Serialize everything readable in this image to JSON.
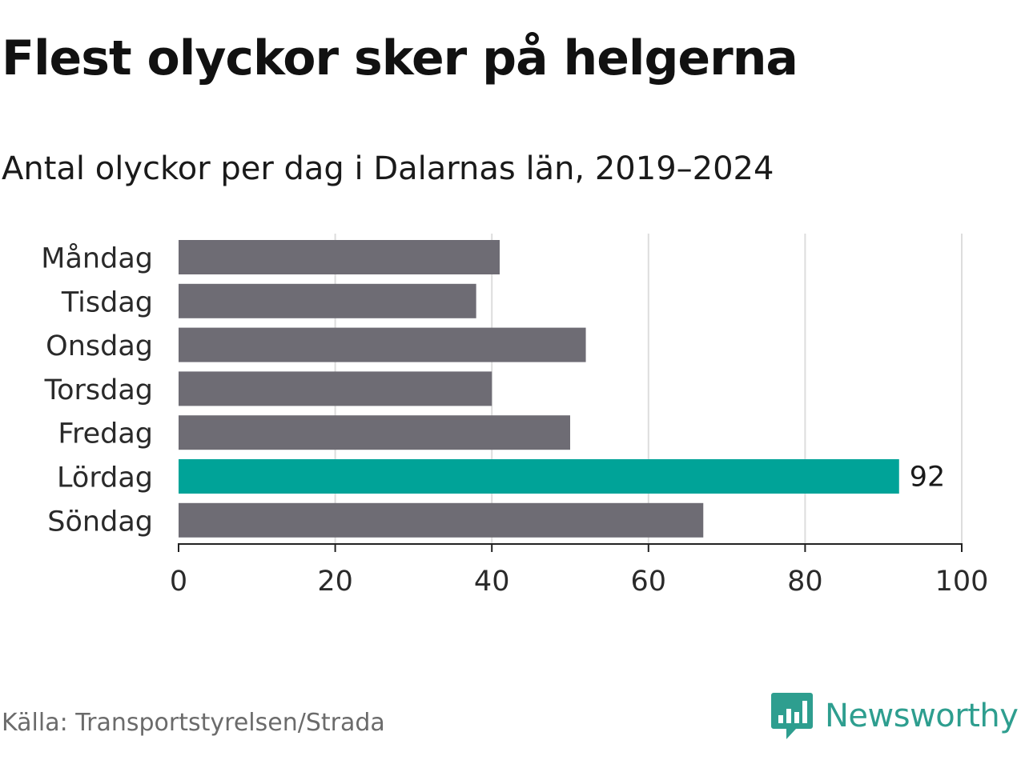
{
  "title": "Flest olyckor sker på helgerna",
  "subtitle": "Antal olyckor per dag i Dalarnas län, 2019–2024",
  "source": "Källa: Transportstyrelsen/Strada",
  "brand": {
    "name": "Newsworthy",
    "icon": "newsworthy-logo-icon",
    "color": "#2e9e8f"
  },
  "colors": {
    "bar": "#6e6c74",
    "highlight": "#00a398",
    "grid": "#dddddd",
    "axis": "#222222"
  },
  "chart_data": {
    "type": "bar",
    "orientation": "horizontal",
    "categories": [
      "Måndag",
      "Tisdag",
      "Onsdag",
      "Torsdag",
      "Fredag",
      "Lördag",
      "Söndag"
    ],
    "values": [
      41,
      38,
      52,
      40,
      50,
      92,
      67
    ],
    "highlight_index": 5,
    "data_labels": [
      "",
      "",
      "",
      "",
      "",
      "92",
      ""
    ],
    "xlim": [
      0,
      100
    ],
    "xticks": [
      0,
      20,
      40,
      60,
      80,
      100
    ],
    "xlabel": "",
    "ylabel": "",
    "grid": true,
    "legend": "none"
  }
}
